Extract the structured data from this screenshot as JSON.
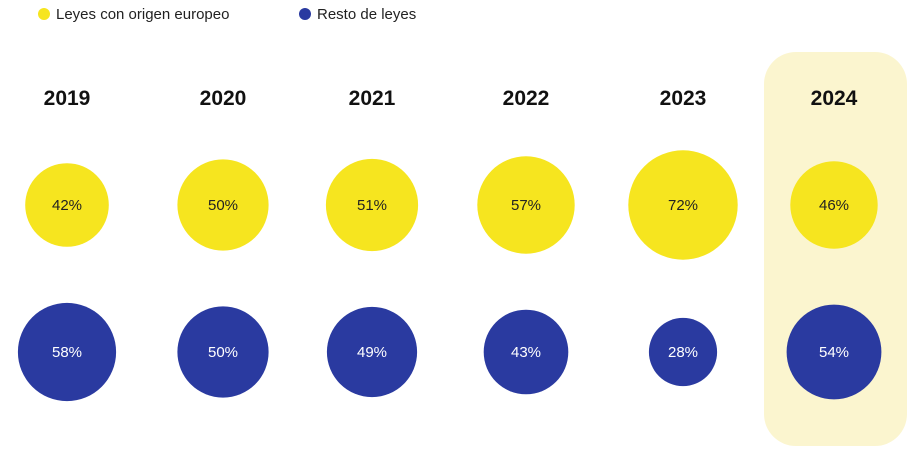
{
  "colors": {
    "eu": "#f6e51f",
    "rest": "#2a3aa0",
    "highlight": "#fbf5cf"
  },
  "chart_data": {
    "type": "bubble",
    "title": "",
    "categories": [
      "2019",
      "2020",
      "2021",
      "2022",
      "2023",
      "2024"
    ],
    "highlighted_category": "2024",
    "legend_placement": "top-left",
    "series": [
      {
        "name": "Leyes con origen europeo",
        "values": [
          42,
          50,
          51,
          57,
          72,
          46
        ],
        "labels": [
          "42%",
          "50%",
          "51%",
          "57%",
          "72%",
          "46%"
        ]
      },
      {
        "name": "Resto de leyes",
        "values": [
          58,
          50,
          49,
          43,
          28,
          54
        ],
        "labels": [
          "58%",
          "50%",
          "49%",
          "43%",
          "28%",
          "54%"
        ]
      }
    ]
  }
}
